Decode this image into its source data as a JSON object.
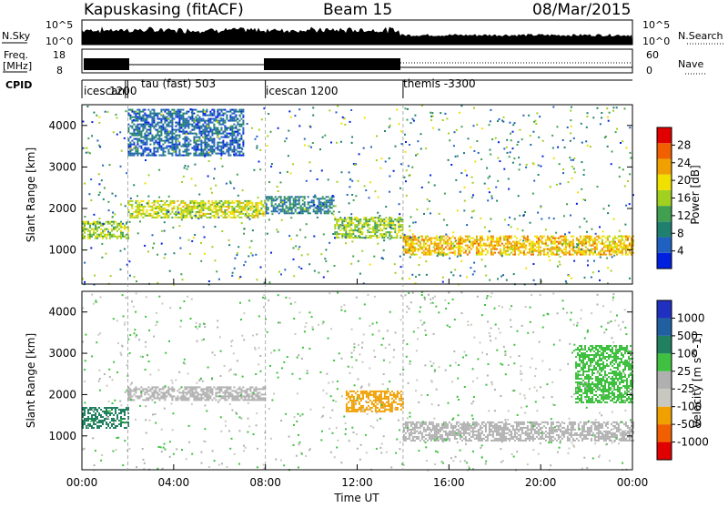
{
  "header": {
    "station": "Kapuskasing (fitACF)",
    "beam": "Beam 15",
    "date": "08/Mar/2015"
  },
  "strip_labels": {
    "nsky": "N.Sky",
    "nsky_hi": "10^5",
    "nsky_lo": "10^0",
    "nsearch": "N.Search",
    "freq_top": "Freq.",
    "freq_unit": "[MHz]",
    "freq_hi": "18",
    "freq_lo": "8",
    "nave_hi": "60",
    "nave_lo": "0",
    "nave": "Nave",
    "cpid": "CPID"
  },
  "cpid_segments": [
    {
      "start": 0.0,
      "end": 2.0,
      "label": "icescan"
    },
    {
      "start": 1.9,
      "end": 8.0,
      "label": "1200"
    },
    {
      "start": 2.0,
      "end": 8.0,
      "label": "tau (fast) 503"
    },
    {
      "start": 8.0,
      "end": 14.0,
      "label": "icescan 1200"
    },
    {
      "start": 14.0,
      "end": 24.0,
      "label": "themis -3300"
    }
  ],
  "axes": {
    "x_label": "Time UT",
    "x_ticks": [
      "00:00",
      "04:00",
      "08:00",
      "12:00",
      "16:00",
      "20:00",
      "00:00"
    ],
    "x_range": [
      0,
      24
    ],
    "y_label": "Slant Range [km]",
    "y_ticks": [
      "1000",
      "2000",
      "3000",
      "4000"
    ],
    "y_range": [
      180,
      4500
    ]
  },
  "power_scale": {
    "label": "Power [dB]",
    "ticks": [
      "4",
      "8",
      "12",
      "16",
      "20",
      "24",
      "28"
    ],
    "colors": [
      "#0020e0",
      "#2060c0",
      "#208070",
      "#40a050",
      "#a0d020",
      "#f0e000",
      "#f0a000",
      "#f06000",
      "#e00000"
    ]
  },
  "velocity_scale": {
    "label": "Velocity [m s^-1]",
    "ticks": [
      "1000",
      "500",
      "100",
      "25",
      "-25",
      "-100",
      "-500",
      "-1000"
    ],
    "colors": [
      "#2030c0",
      "#2060a0",
      "#208060",
      "#40c040",
      "#b0b0b0",
      "#c8c8c0",
      "#f0a000",
      "#f06000",
      "#e00000"
    ]
  },
  "chart_data": [
    {
      "type": "heatmap",
      "title": "Power [dB]",
      "xlabel": "Time UT",
      "ylabel": "Slant Range [km]",
      "xlim": [
        0,
        24
      ],
      "ylim": [
        180,
        4500
      ],
      "bands": [
        {
          "t0": 0.0,
          "t1": 2.0,
          "r0": 1300,
          "r1": 1700,
          "level": 16
        },
        {
          "t0": 2.0,
          "t1": 8.0,
          "r0": 1800,
          "r1": 2200,
          "level": 18
        },
        {
          "t0": 8.0,
          "t1": 11.0,
          "r0": 1900,
          "r1": 2300,
          "level": 8
        },
        {
          "t0": 11.0,
          "t1": 14.0,
          "r0": 1300,
          "r1": 1800,
          "level": 16
        },
        {
          "t0": 14.0,
          "t1": 24.0,
          "r0": 900,
          "r1": 1350,
          "level": 22
        },
        {
          "t0": 2.0,
          "t1": 7.0,
          "r0": 3300,
          "r1": 4400,
          "level": 5
        }
      ]
    },
    {
      "type": "heatmap",
      "title": "Velocity [m s^-1]",
      "xlabel": "Time UT",
      "ylabel": "Slant Range [km]",
      "xlim": [
        0,
        24
      ],
      "ylim": [
        180,
        4500
      ],
      "bands": [
        {
          "t0": 0.0,
          "t1": 2.0,
          "r0": 1200,
          "r1": 1700,
          "level": 100
        },
        {
          "t0": 2.0,
          "t1": 8.0,
          "r0": 1850,
          "r1": 2200,
          "level": 0
        },
        {
          "t0": 11.5,
          "t1": 14.0,
          "r0": 1600,
          "r1": 2100,
          "level": -300
        },
        {
          "t0": 14.0,
          "t1": 24.0,
          "r0": 900,
          "r1": 1350,
          "level": 0
        },
        {
          "t0": 21.5,
          "t1": 24.0,
          "r0": 1800,
          "r1": 3200,
          "level": 80
        }
      ]
    }
  ]
}
